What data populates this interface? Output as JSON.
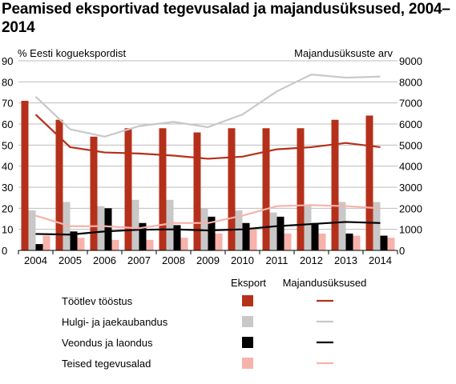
{
  "chart_data": {
    "type": "bar",
    "title": "Peamised eksportivad tegevusalad ja majandusüksused, 2004–2014",
    "ylabel_left": "% Eesti koguekspordist",
    "ylabel_right": "Majandusüksuste arv",
    "ylim_left": [
      0,
      90
    ],
    "ylim_right": [
      0,
      9000
    ],
    "yticks_left": [
      "0",
      "10",
      "20",
      "30",
      "40",
      "50",
      "60",
      "70",
      "80",
      "90"
    ],
    "yticks_right": [
      "0",
      "1000",
      "2000",
      "3000",
      "4000",
      "5000",
      "6000",
      "7000",
      "8000",
      "9000"
    ],
    "categories": [
      "2004",
      "2005",
      "2006",
      "2007",
      "2008",
      "2009",
      "2010",
      "2011",
      "2012",
      "2013",
      "2014"
    ],
    "legend": {
      "header_bars": "Eksport",
      "header_lines": "Majandusüksused",
      "placement": "bottom"
    },
    "bar_series": [
      {
        "name": "Töötlev tööstus",
        "color": "#b5301b",
        "values": [
          71,
          62,
          54,
          58,
          58,
          56,
          58,
          58,
          58,
          62,
          64
        ]
      },
      {
        "name": "Hulgi- ja jaekaubandus",
        "color": "#c8c8c8",
        "values": [
          19,
          23,
          21,
          24,
          24,
          20,
          19,
          18,
          21,
          23,
          23
        ]
      },
      {
        "name": "Veondus ja laondus",
        "color": "#000000",
        "values": [
          3,
          9,
          20,
          13,
          12,
          16,
          13,
          16,
          13,
          8,
          7
        ]
      },
      {
        "name": "Teised tegevusalad",
        "color": "#f7b2ab",
        "values": [
          7,
          6,
          5,
          5,
          6,
          8,
          10,
          8,
          8,
          7,
          6
        ]
      }
    ],
    "line_series": [
      {
        "name": "Töötlev tööstus",
        "color": "#b5301b",
        "values": [
          6450,
          4900,
          4650,
          4600,
          4500,
          4350,
          4450,
          4800,
          4900,
          5100,
          4900
        ]
      },
      {
        "name": "Hulgi- ja jaekaubandus",
        "color": "#c8c8c8",
        "values": [
          7300,
          5750,
          5400,
          5900,
          6100,
          5850,
          6450,
          7550,
          8350,
          8200,
          8250
        ]
      },
      {
        "name": "Veondus ja laondus",
        "color": "#000000",
        "values": [
          780,
          750,
          900,
          980,
          1000,
          950,
          1000,
          1150,
          1250,
          1350,
          1300
        ]
      },
      {
        "name": "Teised tegevusalad",
        "color": "#f7b2ab",
        "values": [
          1650,
          1150,
          1150,
          1050,
          1300,
          1300,
          1650,
          2100,
          2150,
          2100,
          2000
        ]
      }
    ]
  }
}
